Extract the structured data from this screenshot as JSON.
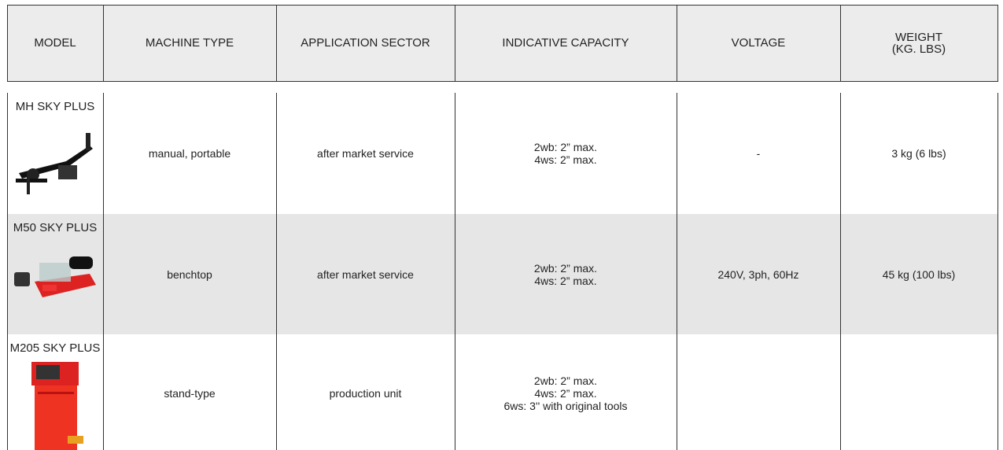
{
  "header": {
    "columns": [
      "MODEL",
      "MACHINE TYPE",
      "APPLICATION SECTOR",
      "INDICATIVE CAPACITY",
      "VOLTAGE",
      [
        "WEIGHT",
        "(KG. LBS)"
      ]
    ]
  },
  "table": {
    "rows": [
      {
        "model": "MH SKY PLUS",
        "machine_type": "manual, portable",
        "application_sector": "after market service",
        "capacity": [
          "2wb: 2” max.",
          "4ws: 2” max."
        ],
        "voltage": "-",
        "weight": "3 kg (6 lbs)"
      },
      {
        "model": "M50 SKY PLUS",
        "machine_type": "benchtop",
        "application_sector": "after market service",
        "capacity": [
          "2wb: 2” max.",
          "4ws: 2” max."
        ],
        "voltage": "240V, 3ph, 60Hz",
        "weight": "45 kg (100 lbs)"
      },
      {
        "model": "M205 SKY PLUS",
        "machine_type": "stand-type",
        "application_sector": "production unit",
        "capacity": [
          "2wb: 2” max.",
          "4ws: 2” max.",
          "6ws: 3'' with original tools"
        ]
      }
    ]
  }
}
